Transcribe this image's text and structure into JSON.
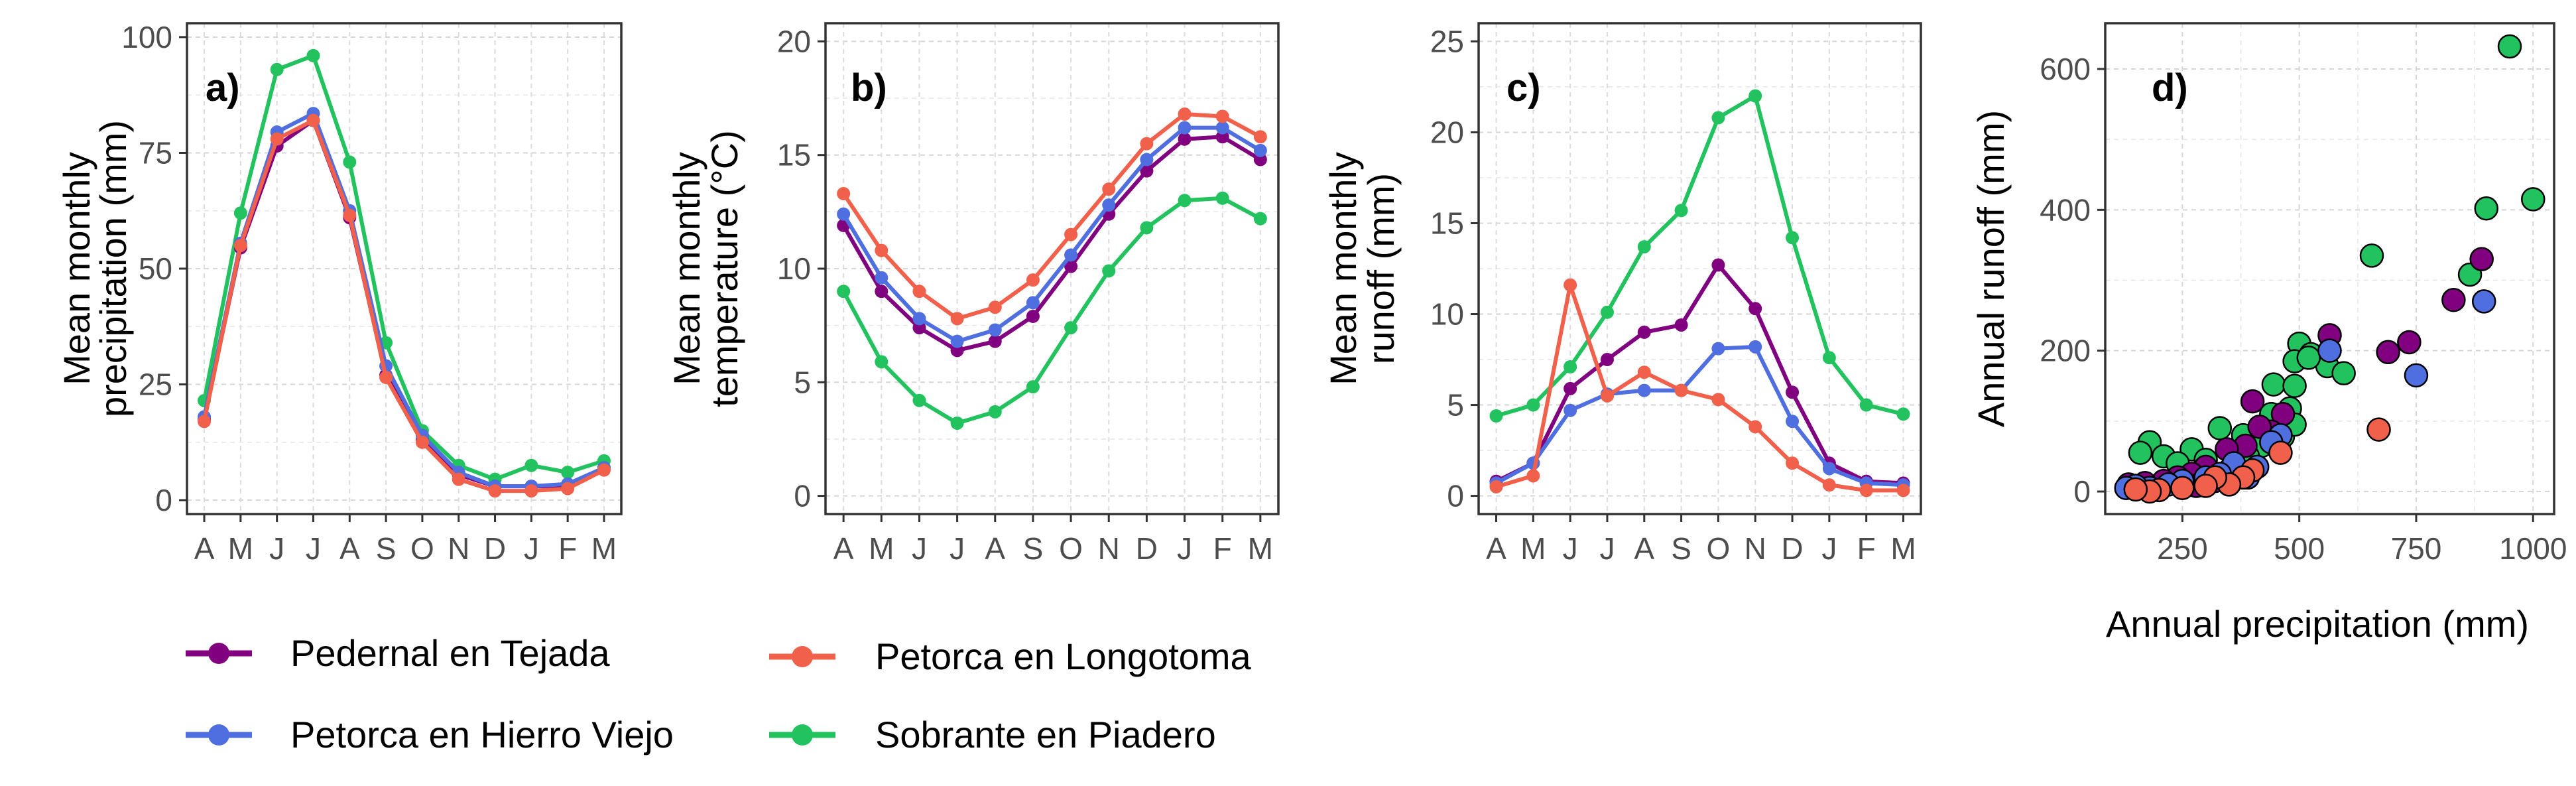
{
  "colors": {
    "pedernal": "#800080",
    "hierro": "#4f6fe0",
    "longotoma": "#f0604a",
    "sobrante": "#22c35e"
  },
  "legend": [
    {
      "key": "pedernal",
      "label": "Pedernal en Tejada"
    },
    {
      "key": "hierro",
      "label": "Petorca en Hierro Viejo"
    },
    {
      "key": "longotoma",
      "label": "Petorca en Longotoma"
    },
    {
      "key": "sobrante",
      "label": "Sobrante en Piadero"
    }
  ],
  "chart_data": [
    {
      "id": "a",
      "type": "line",
      "panel_label": "a)",
      "ylabel": [
        "Mean monthly",
        "precipitation (mm)"
      ],
      "xlabel": "",
      "categories": [
        "A",
        "M",
        "J",
        "J",
        "A",
        "S",
        "O",
        "N",
        "D",
        "J",
        "F",
        "M"
      ],
      "ylim": [
        -3,
        103
      ],
      "yticks": [
        0,
        25,
        50,
        75,
        100
      ],
      "yticklabels": [
        "0",
        "25",
        "50",
        "75",
        "100"
      ],
      "grid": true,
      "series": [
        {
          "key": "sobrante",
          "values": [
            21.5,
            62,
            93,
            96,
            73,
            34,
            15,
            7.5,
            4.5,
            7.5,
            6,
            8.5
          ]
        },
        {
          "key": "pedernal",
          "values": [
            17.5,
            54.5,
            76.5,
            82,
            61,
            27,
            13,
            5.5,
            3,
            3,
            3,
            7
          ]
        },
        {
          "key": "hierro",
          "values": [
            18,
            55.5,
            79.5,
            83.5,
            62.5,
            29,
            14,
            6,
            3,
            3,
            3.5,
            7
          ]
        },
        {
          "key": "longotoma",
          "values": [
            17,
            55,
            78,
            82,
            61.5,
            26.5,
            12.5,
            4.5,
            2,
            2,
            2.5,
            6.5
          ]
        }
      ]
    },
    {
      "id": "b",
      "type": "line",
      "panel_label": "b)",
      "ylabel": [
        "Mean monthly",
        "temperature (°C)"
      ],
      "xlabel": "",
      "categories": [
        "A",
        "M",
        "J",
        "J",
        "A",
        "S",
        "O",
        "N",
        "D",
        "J",
        "F",
        "M"
      ],
      "ylim": [
        -0.8,
        20.8
      ],
      "yticks": [
        0,
        5,
        10,
        15,
        20
      ],
      "yticklabels": [
        "0",
        "5",
        "10",
        "15",
        "20"
      ],
      "grid": true,
      "series": [
        {
          "key": "sobrante",
          "values": [
            9,
            5.9,
            4.2,
            3.2,
            3.7,
            4.8,
            7.4,
            9.9,
            11.8,
            13,
            13.1,
            12.2
          ]
        },
        {
          "key": "pedernal",
          "values": [
            11.9,
            9,
            7.4,
            6.4,
            6.8,
            7.9,
            10.1,
            12.4,
            14.3,
            15.7,
            15.8,
            14.8
          ]
        },
        {
          "key": "hierro",
          "values": [
            12.4,
            9.6,
            7.8,
            6.8,
            7.3,
            8.5,
            10.6,
            12.8,
            14.8,
            16.2,
            16.2,
            15.2
          ]
        },
        {
          "key": "longotoma",
          "values": [
            13.3,
            10.8,
            9,
            7.8,
            8.3,
            9.5,
            11.5,
            13.5,
            15.5,
            16.8,
            16.7,
            15.8
          ]
        }
      ]
    },
    {
      "id": "c",
      "type": "line",
      "panel_label": "c)",
      "ylabel": [
        "Mean monthly",
        "runoff (mm)"
      ],
      "xlabel": "",
      "categories": [
        "A",
        "M",
        "J",
        "J",
        "A",
        "S",
        "O",
        "N",
        "D",
        "J",
        "F",
        "M"
      ],
      "ylim": [
        -1,
        26
      ],
      "yticks": [
        0,
        5,
        10,
        15,
        20,
        25
      ],
      "yticklabels": [
        "0",
        "5",
        "10",
        "15",
        "20",
        "25"
      ],
      "grid": true,
      "series": [
        {
          "key": "sobrante",
          "values": [
            4.4,
            5,
            7.1,
            10.1,
            13.7,
            15.7,
            20.8,
            22,
            14.2,
            7.6,
            5,
            4.5
          ]
        },
        {
          "key": "pedernal",
          "values": [
            0.8,
            1.8,
            5.9,
            7.5,
            9,
            9.4,
            12.7,
            10.3,
            5.7,
            1.8,
            0.8,
            0.7
          ]
        },
        {
          "key": "hierro",
          "values": [
            0.7,
            1.8,
            4.7,
            5.6,
            5.8,
            5.8,
            8.1,
            8.2,
            4.1,
            1.5,
            0.7,
            0.6
          ]
        },
        {
          "key": "longotoma",
          "values": [
            0.5,
            1.1,
            11.6,
            5.5,
            6.8,
            5.8,
            5.3,
            3.8,
            1.8,
            0.6,
            0.3,
            0.3
          ]
        }
      ]
    },
    {
      "id": "d",
      "type": "scatter",
      "panel_label": "d)",
      "ylabel": [
        "Annual runoff (mm)"
      ],
      "xlabel": "Annual precipitation (mm)",
      "xlim": [
        85,
        1045
      ],
      "ylim": [
        -32,
        665
      ],
      "xticks": [
        250,
        500,
        750,
        1000
      ],
      "xticklabels": [
        "250",
        "500",
        "750",
        "1000"
      ],
      "yticks": [
        0,
        200,
        400,
        600
      ],
      "yticklabels": [
        "0",
        "200",
        "400",
        "600"
      ],
      "grid": true,
      "series": [
        {
          "key": "sobrante",
          "points": [
            [
              950,
              632
            ],
            [
              1000,
              415
            ],
            [
              900,
              402
            ],
            [
              655,
              335
            ],
            [
              865,
              308
            ],
            [
              500,
              210
            ],
            [
              525,
              195
            ],
            [
              560,
              178
            ],
            [
              490,
              185
            ],
            [
              480,
              118
            ],
            [
              445,
              152
            ],
            [
              520,
              190
            ],
            [
              595,
              168
            ],
            [
              490,
              150
            ],
            [
              380,
              80
            ],
            [
              330,
              90
            ],
            [
              270,
              60
            ],
            [
              180,
              70
            ],
            [
              160,
              55
            ],
            [
              210,
              50
            ],
            [
              240,
              40
            ],
            [
              300,
              45
            ],
            [
              350,
              30
            ],
            [
              420,
              65
            ],
            [
              465,
              78
            ],
            [
              490,
              95
            ],
            [
              440,
              110
            ],
            [
              390,
              50
            ]
          ]
        },
        {
          "key": "pedernal",
          "points": [
            [
              890,
              330
            ],
            [
              830,
              272
            ],
            [
              735,
              212
            ],
            [
              690,
              198
            ],
            [
              565,
              222
            ],
            [
              400,
              128
            ],
            [
              465,
              110
            ],
            [
              440,
              85
            ],
            [
              415,
              92
            ],
            [
              385,
              65
            ],
            [
              345,
              60
            ],
            [
              300,
              35
            ],
            [
              270,
              25
            ],
            [
              240,
              20
            ],
            [
              210,
              15
            ],
            [
              170,
              12
            ],
            [
              135,
              10
            ],
            [
              320,
              15
            ],
            [
              280,
              8
            ]
          ]
        },
        {
          "key": "hierro",
          "points": [
            [
              895,
              270
            ],
            [
              750,
              165
            ],
            [
              565,
              200
            ],
            [
              460,
              80
            ],
            [
              440,
              70
            ],
            [
              410,
              35
            ],
            [
              390,
              20
            ],
            [
              360,
              40
            ],
            [
              330,
              25
            ],
            [
              300,
              20
            ],
            [
              250,
              15
            ],
            [
              220,
              10
            ],
            [
              180,
              5
            ],
            [
              150,
              8
            ],
            [
              130,
              5
            ]
          ]
        },
        {
          "key": "longotoma",
          "points": [
            [
              670,
              88
            ],
            [
              460,
              55
            ],
            [
              400,
              30
            ],
            [
              380,
              20
            ],
            [
              350,
              10
            ],
            [
              320,
              20
            ],
            [
              300,
              8
            ],
            [
              250,
              5
            ],
            [
              200,
              2
            ],
            [
              180,
              0
            ],
            [
              150,
              3
            ]
          ]
        }
      ]
    }
  ]
}
